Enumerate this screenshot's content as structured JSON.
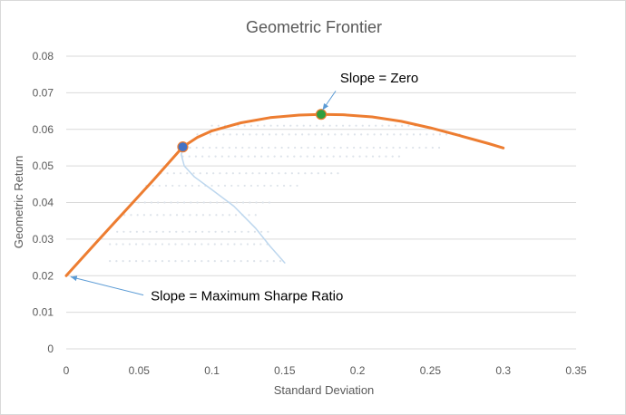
{
  "chart_data": {
    "type": "line",
    "title": "Geometric Frontier",
    "xlabel": "Standard Deviation",
    "ylabel": "Geometric Return",
    "xlim": [
      0,
      0.35
    ],
    "ylim": [
      0,
      0.08
    ],
    "xticks": [
      0,
      0.05,
      0.1,
      0.15,
      0.2,
      0.25,
      0.3,
      0.35
    ],
    "xtick_labels": [
      "0",
      "0.05",
      "0.1",
      "0.15",
      "0.2",
      "0.25",
      "0.3",
      "0.35"
    ],
    "yticks": [
      0,
      0.01,
      0.02,
      0.03,
      0.04,
      0.05,
      0.06,
      0.07,
      0.08
    ],
    "ytick_labels": [
      "0",
      "0.01",
      "0.02",
      "0.03",
      "0.04",
      "0.05",
      "0.06",
      "0.07",
      "0.08"
    ],
    "grid": "horizontal",
    "series": [
      {
        "color": "#ed7d31",
        "x": [
          0,
          0.02,
          0.04,
          0.06,
          0.08,
          0.09,
          0.1,
          0.12,
          0.14,
          0.16,
          0.175,
          0.19,
          0.21,
          0.23,
          0.25,
          0.27,
          0.29,
          0.3
        ],
        "y": [
          0.02,
          0.0288,
          0.0375,
          0.0462,
          0.0552,
          0.0578,
          0.0596,
          0.0618,
          0.0632,
          0.0639,
          0.0641,
          0.064,
          0.0634,
          0.0622,
          0.0604,
          0.0583,
          0.0561,
          0.0549
        ]
      },
      {
        "color": "#bdd7ee",
        "x": [
          0.08,
          0.079,
          0.081,
          0.088,
          0.1,
          0.115,
          0.13,
          0.14,
          0.15
        ],
        "y": [
          0.0552,
          0.053,
          0.05,
          0.047,
          0.0435,
          0.039,
          0.033,
          0.028,
          0.0235
        ]
      }
    ],
    "feasible_region": {
      "color": "#dde3ea",
      "rows": [
        {
          "y": 0.024,
          "x_from": 0.03,
          "x_to": 0.15
        },
        {
          "y": 0.028,
          "x_from": 0.03,
          "x_to": 0.14
        },
        {
          "y": 0.032,
          "x_from": 0.035,
          "x_to": 0.14
        },
        {
          "y": 0.036,
          "x_from": 0.04,
          "x_to": 0.13
        },
        {
          "y": 0.04,
          "x_from": 0.045,
          "x_to": 0.14
        },
        {
          "y": 0.044,
          "x_from": 0.055,
          "x_to": 0.16
        },
        {
          "y": 0.048,
          "x_from": 0.065,
          "x_to": 0.19
        },
        {
          "y": 0.052,
          "x_from": 0.08,
          "x_to": 0.23
        },
        {
          "y": 0.055,
          "x_from": 0.085,
          "x_to": 0.26
        },
        {
          "y": 0.058,
          "x_from": 0.09,
          "x_to": 0.27
        },
        {
          "y": 0.061,
          "x_from": 0.1,
          "x_to": 0.24
        }
      ]
    },
    "points": [
      {
        "x": 0.08,
        "y": 0.0552,
        "color": "#4472c4"
      },
      {
        "x": 0.175,
        "y": 0.0641,
        "color": "#2e9e3e"
      }
    ],
    "annotations": [
      {
        "text": "Slope = Zero",
        "label_at": {
          "x": 0.188,
          "y": 0.0728
        },
        "arrow_from": {
          "x": 0.185,
          "y": 0.0705
        },
        "arrow_to": {
          "x": 0.176,
          "y": 0.0653
        }
      },
      {
        "text": "Slope = Maximum Sharpe Ratio",
        "label_at": {
          "x": 0.058,
          "y": 0.0132
        },
        "arrow_from": {
          "x": 0.053,
          "y": 0.0147
        },
        "arrow_to": {
          "x": 0.003,
          "y": 0.0197
        }
      }
    ]
  }
}
